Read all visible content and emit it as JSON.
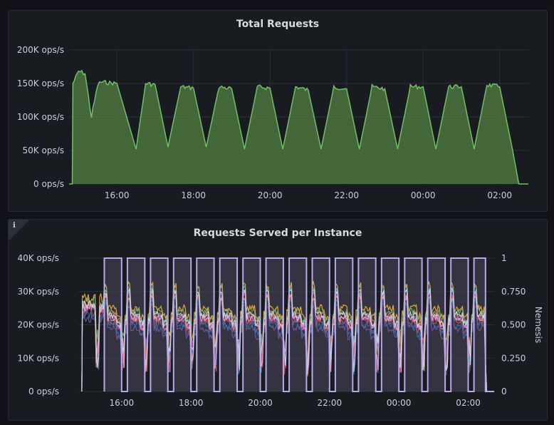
{
  "panels": {
    "total": {
      "title": "Total Requests"
    },
    "instance": {
      "title": "Requests Served per Instance",
      "info_icon": "info-icon"
    }
  },
  "colors": {
    "total_line": "#73bf69",
    "total_fill": "#4f7a3f",
    "grid": "#2c2f36",
    "nemesis": "#b8a9e8",
    "nemesis_fill": "#4a4458"
  },
  "chart_data": [
    {
      "type": "area",
      "title": "Total Requests",
      "x_range": [
        "14:45",
        "02:45"
      ],
      "x_ticks": [
        "16:00",
        "18:00",
        "20:00",
        "22:00",
        "00:00",
        "02:00"
      ],
      "y_ticks": [
        "0 ops/s",
        "50K ops/s",
        "100K ops/s",
        "150K ops/s",
        "200K ops/s"
      ],
      "ylim": [
        0,
        200000
      ],
      "grid": true,
      "series": [
        {
          "x": [
            "14:45",
            "14:50",
            "14:51",
            "15:00",
            "15:10",
            "15:20",
            "15:30",
            "15:35",
            "16:00",
            "16:30",
            "16:45",
            "17:00",
            "17:20",
            "17:40",
            "18:00",
            "18:20",
            "18:40",
            "19:00",
            "19:20",
            "19:40",
            "20:00",
            "20:20",
            "20:40",
            "21:00",
            "21:20",
            "21:40",
            "22:00",
            "22:20",
            "22:40",
            "23:00",
            "23:20",
            "23:40",
            "00:00",
            "00:20",
            "00:40",
            "01:00",
            "01:20",
            "01:40",
            "02:00",
            "02:20",
            "02:30",
            "02:45"
          ],
          "values": [
            0,
            0,
            150000,
            168000,
            165000,
            100000,
            148000,
            152000,
            150000,
            52000,
            150000,
            148000,
            55000,
            145000,
            143000,
            55000,
            145000,
            142000,
            52000,
            145000,
            143000,
            52000,
            145000,
            140000,
            52000,
            145000,
            142000,
            52000,
            145000,
            142000,
            52000,
            145000,
            145000,
            52000,
            145000,
            145000,
            52000,
            148000,
            145000,
            52000,
            0,
            0
          ]
        }
      ]
    },
    {
      "type": "line",
      "title": "Requests Served per Instance",
      "x_range": [
        "14:45",
        "02:45"
      ],
      "x_ticks": [
        "16:00",
        "18:00",
        "20:00",
        "22:00",
        "00:00",
        "02:00"
      ],
      "y_ticks": [
        "0 ops/s",
        "10K ops/s",
        "20K ops/s",
        "30K ops/s",
        "40K ops/s"
      ],
      "ylim": [
        0,
        40000
      ],
      "y2_ticks": [
        "0",
        "0.250",
        "0.500",
        "0.750",
        "1"
      ],
      "y2lim": [
        0,
        1
      ],
      "y2label": "Nemesis",
      "grid": true,
      "nemesis": {
        "x": [
          "15:30",
          "16:00",
          "16:10",
          "16:40",
          "16:50",
          "17:20",
          "17:30",
          "18:00",
          "18:10",
          "18:40",
          "18:50",
          "19:20",
          "19:30",
          "20:00",
          "20:10",
          "20:40",
          "20:50",
          "21:20",
          "21:30",
          "22:00",
          "22:10",
          "22:40",
          "22:50",
          "23:20",
          "23:30",
          "00:00",
          "00:10",
          "00:40",
          "00:50",
          "01:20",
          "01:30",
          "02:00",
          "02:10",
          "02:30"
        ],
        "values": [
          1,
          0,
          1,
          0,
          1,
          0,
          1,
          0,
          1,
          0,
          1,
          0,
          1,
          0,
          1,
          0,
          1,
          0,
          1,
          0,
          1,
          0,
          1,
          0,
          1,
          0,
          1,
          0,
          1,
          0,
          1,
          0,
          1,
          0
        ]
      },
      "series": [
        {
          "color": "#eab839",
          "peak": 32000,
          "base": 25000
        },
        {
          "color": "#6ed0e0",
          "peak": 30000,
          "base": 22000
        },
        {
          "color": "#7eb26d",
          "peak": 31000,
          "base": 24000
        },
        {
          "color": "#ef843c",
          "peak": 29000,
          "base": 23000
        },
        {
          "color": "#e24d42",
          "peak": 28000,
          "base": 21000
        },
        {
          "color": "#1f78c1",
          "peak": 27000,
          "base": 20000
        },
        {
          "color": "#ba43a9",
          "peak": 29000,
          "base": 22000
        },
        {
          "color": "#705da0",
          "peak": 26000,
          "base": 19000
        },
        {
          "color": "#f9a9c0",
          "peak": 28000,
          "base": 22000
        },
        {
          "color": "#badff4",
          "peak": 30000,
          "base": 23000
        }
      ]
    }
  ]
}
